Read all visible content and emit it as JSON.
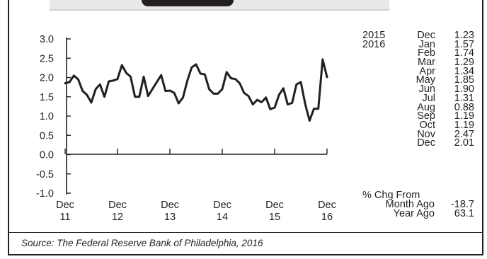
{
  "chart_data": {
    "type": "line",
    "title": "",
    "xlabel": "",
    "ylabel": "",
    "ylim": [
      -1.0,
      3.0
    ],
    "yticks": [
      "3.0",
      "2.5",
      "2.0",
      "1.5",
      "1.0",
      "0.5",
      "0.0",
      "-0.5",
      "-1.0"
    ],
    "ytick_values": [
      3.0,
      2.5,
      2.0,
      1.5,
      1.0,
      0.5,
      0.0,
      -0.5,
      -1.0
    ],
    "xticks": [
      {
        "month": "Dec",
        "year": "11"
      },
      {
        "month": "Dec",
        "year": "12"
      },
      {
        "month": "Dec",
        "year": "13"
      },
      {
        "month": "Dec",
        "year": "14"
      },
      {
        "month": "Dec",
        "year": "15"
      },
      {
        "month": "Dec",
        "year": "16"
      }
    ],
    "x_start": "Dec 2011",
    "x_end": "Dec 2016",
    "grid": false,
    "color": "#231f20",
    "values": [
      1.85,
      1.88,
      2.05,
      1.95,
      1.65,
      1.55,
      1.35,
      1.7,
      1.82,
      1.5,
      1.9,
      1.92,
      1.96,
      2.32,
      2.12,
      2.02,
      1.5,
      1.5,
      2.02,
      1.52,
      1.7,
      1.88,
      2.06,
      1.65,
      1.66,
      1.6,
      1.33,
      1.48,
      1.92,
      2.26,
      2.34,
      2.1,
      2.08,
      1.7,
      1.58,
      1.58,
      1.7,
      2.14,
      1.98,
      1.96,
      1.85,
      1.6,
      1.52,
      1.3,
      1.42,
      1.36,
      1.48,
      1.18,
      1.22,
      1.55,
      1.72,
      1.3,
      1.34,
      1.82,
      1.88,
      1.31,
      0.88,
      1.19,
      1.19,
      2.47,
      2.01
    ]
  },
  "table": {
    "rows": [
      {
        "year": "2015",
        "month": "Dec",
        "value": "1.23"
      },
      {
        "year": "2016",
        "month": "Jan",
        "value": "1.57"
      },
      {
        "year": "",
        "month": "Feb",
        "value": "1.74"
      },
      {
        "year": "",
        "month": "Mar",
        "value": "1.29"
      },
      {
        "year": "",
        "month": "Apr",
        "value": "1.34"
      },
      {
        "year": "",
        "month": "May",
        "value": "1.85"
      },
      {
        "year": "",
        "month": "Jun",
        "value": "1.90"
      },
      {
        "year": "",
        "month": "Jul",
        "value": "1.31"
      },
      {
        "year": "",
        "month": "Aug",
        "value": "0.88"
      },
      {
        "year": "",
        "month": "Sep",
        "value": "1.19"
      },
      {
        "year": "",
        "month": "Oct",
        "value": "1.19"
      },
      {
        "year": "",
        "month": "Nov",
        "value": "2.47"
      },
      {
        "year": "",
        "month": "Dec",
        "value": "2.01"
      }
    ]
  },
  "change": {
    "header": "% Chg From",
    "rows": [
      {
        "label": "Month Ago",
        "value": "-18.7"
      },
      {
        "label": "Year Ago",
        "value": "63.1"
      }
    ]
  },
  "source": "Source:  The Federal Reserve Bank of Philadelphia, 2016"
}
